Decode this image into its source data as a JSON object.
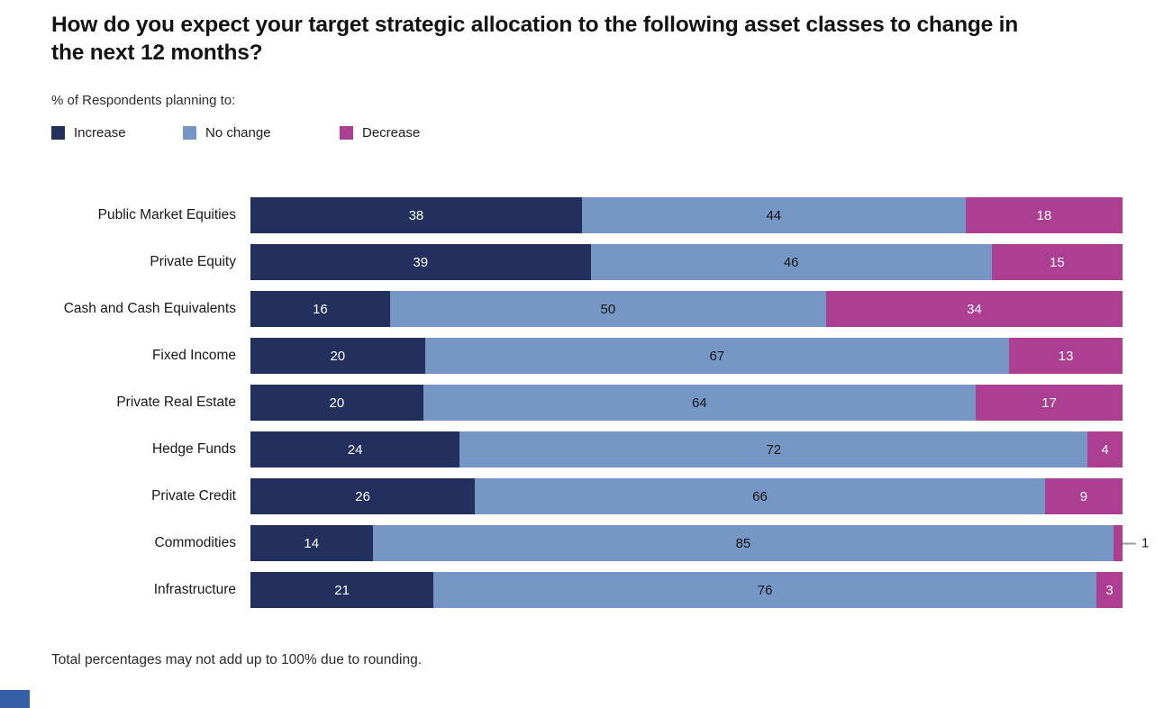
{
  "header": {
    "title": "How do you expect your target strategic allocation to the following asset classes to change in the next 12 months?",
    "subtitle": "% of Respondents planning to:"
  },
  "legend": {
    "items": [
      {
        "label": "Increase",
        "color": "#232f5c"
      },
      {
        "label": "No change",
        "color": "#7697c5"
      },
      {
        "label": "Decrease",
        "color": "#ad3f92"
      }
    ]
  },
  "chart_data": {
    "type": "bar",
    "variant": "horizontal-stacked",
    "title": "How do you expect your target strategic allocation to the following asset classes to change in the next 12 months?",
    "subtitle": "% of Respondents planning to:",
    "unit": "% of respondents",
    "xlim": [
      0,
      100
    ],
    "grid": false,
    "legend_position": "top",
    "value_labels": true,
    "outside_label_threshold": 2,
    "categories": [
      "Public Market Equities",
      "Private Equity",
      "Cash and Cash Equivalents",
      "Fixed Income",
      "Private Real Estate",
      "Hedge Funds",
      "Private Credit",
      "Commodities",
      "Infrastructure"
    ],
    "series": [
      {
        "name": "Increase",
        "color": "#232f5c",
        "label_color": "#ffffff",
        "values": [
          38,
          39,
          16,
          20,
          20,
          24,
          26,
          14,
          21
        ]
      },
      {
        "name": "No change",
        "color": "#7697c5",
        "label_color": "#161616",
        "values": [
          44,
          46,
          50,
          67,
          64,
          72,
          66,
          85,
          76
        ]
      },
      {
        "name": "Decrease",
        "color": "#ad3f92",
        "label_color": "#ffffff",
        "values": [
          18,
          15,
          34,
          13,
          17,
          4,
          9,
          1,
          3
        ]
      }
    ],
    "outside_labels": [
      {
        "category": "Commodities",
        "series": "Decrease",
        "value": 1
      }
    ]
  },
  "footnote": {
    "text": "Total percentages may not add up to 100% due to rounding."
  },
  "decor": {
    "corner_band_color": "#3560a8"
  }
}
